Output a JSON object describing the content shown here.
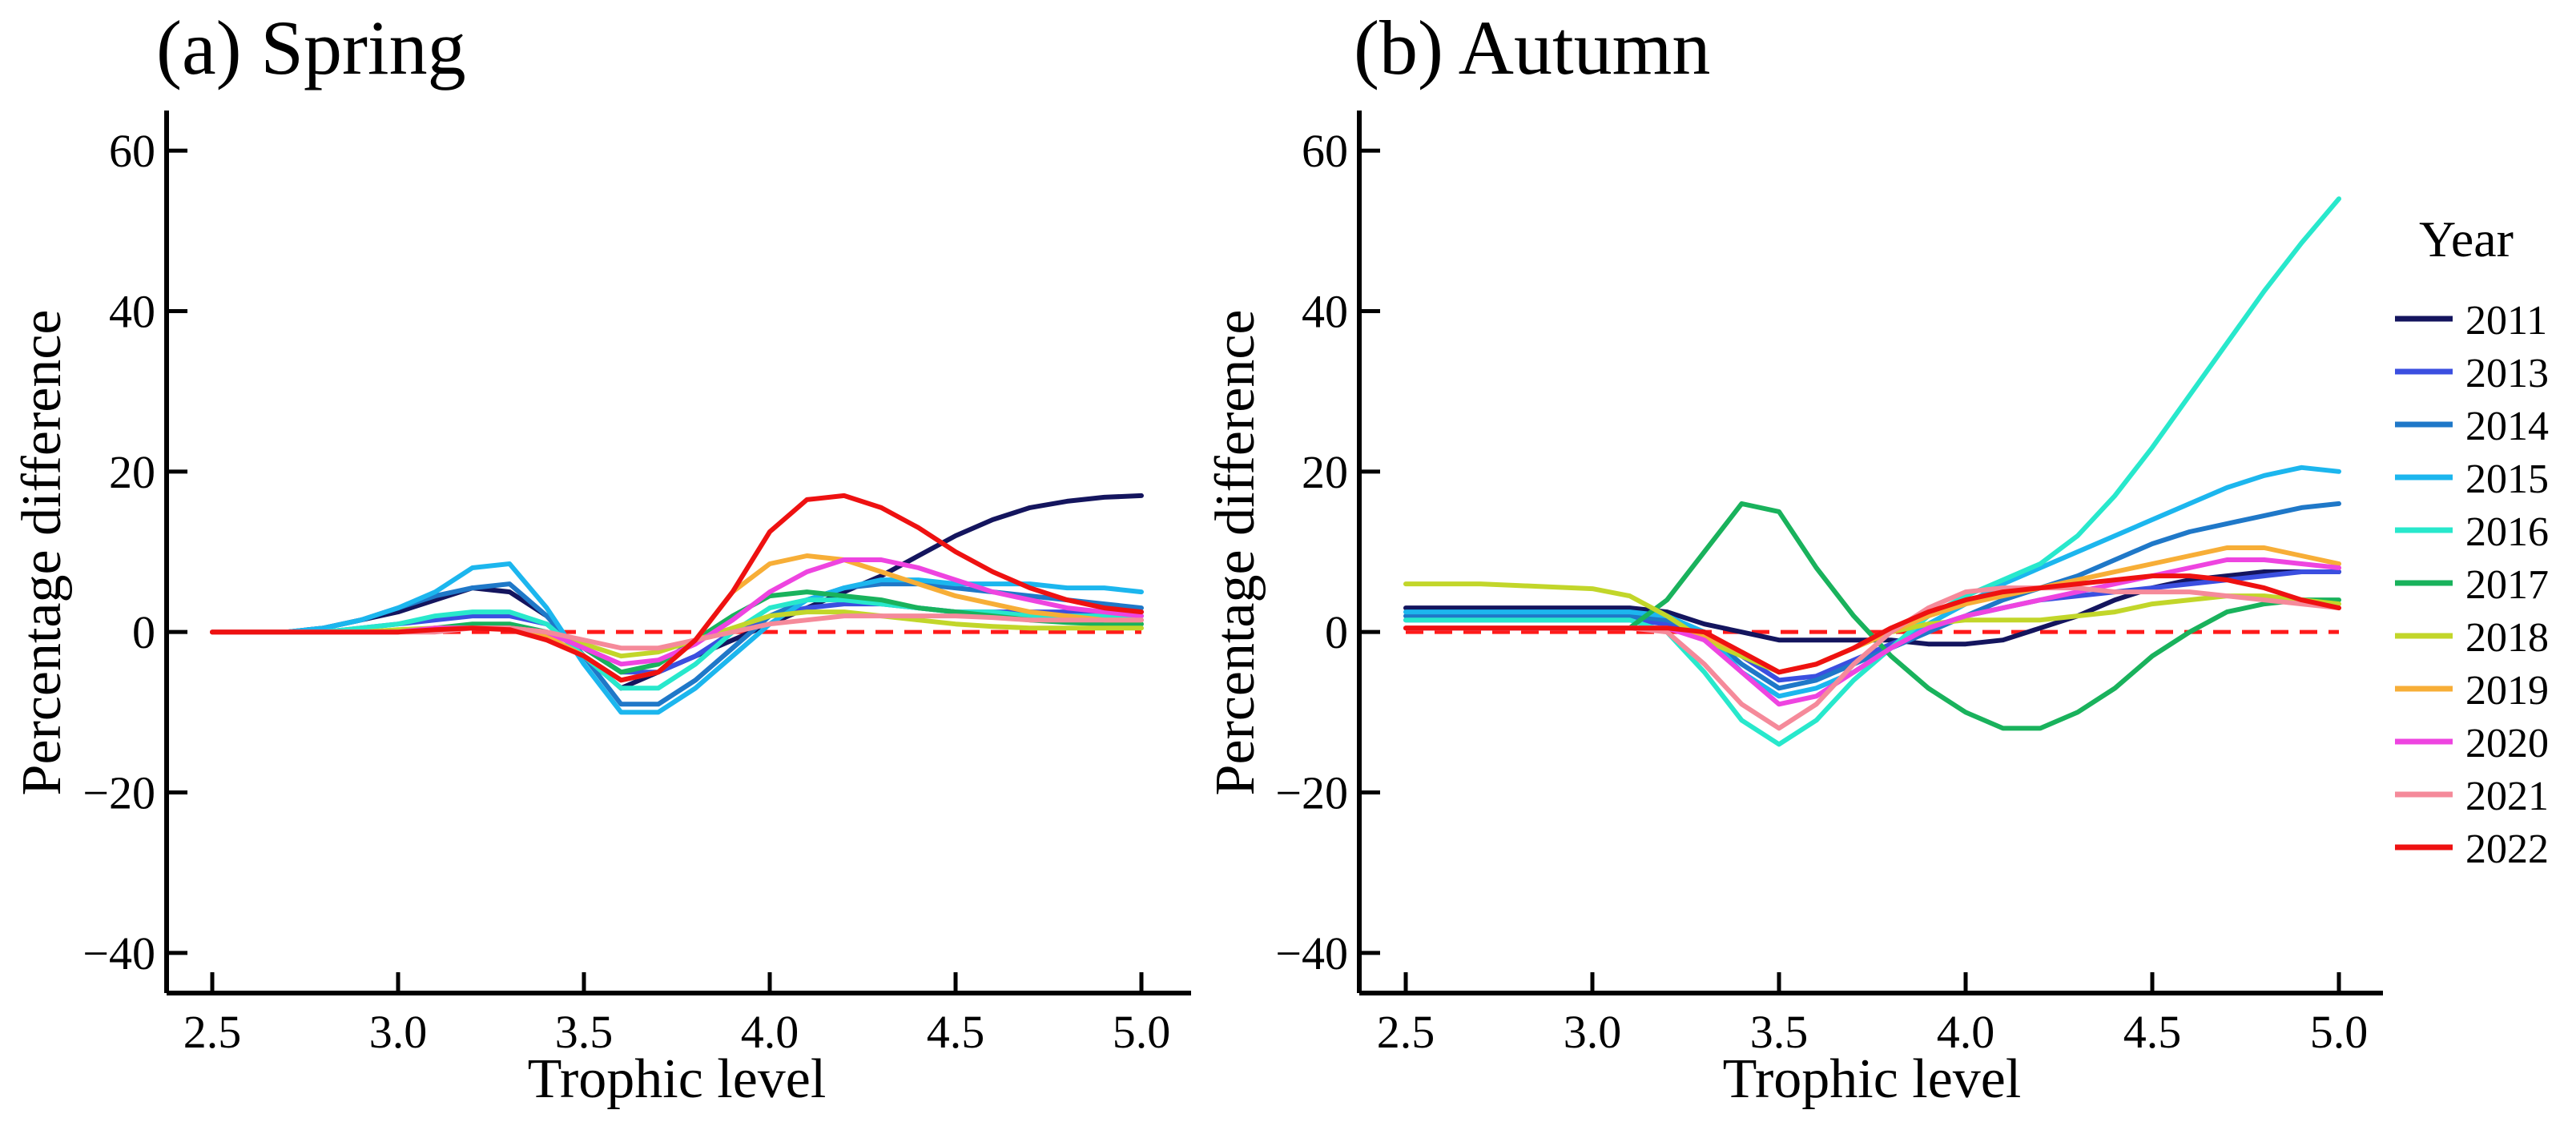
{
  "figure": {
    "legend_title": "Year",
    "reference_line_color": "#ff1a1a"
  },
  "legend": [
    {
      "year": "2011",
      "color": "#14155e"
    },
    {
      "year": "2013",
      "color": "#3b4fe0"
    },
    {
      "year": "2014",
      "color": "#1f78c8"
    },
    {
      "year": "2015",
      "color": "#1cb6ee"
    },
    {
      "year": "2016",
      "color": "#28e8cc"
    },
    {
      "year": "2017",
      "color": "#19b25c"
    },
    {
      "year": "2018",
      "color": "#c2d62a"
    },
    {
      "year": "2019",
      "color": "#f7ae37"
    },
    {
      "year": "2020",
      "color": "#ee44e0"
    },
    {
      "year": "2021",
      "color": "#f58a9a"
    },
    {
      "year": "2022",
      "color": "#ee1111"
    }
  ],
  "chart_data": [
    {
      "type": "line",
      "title": "(a) Spring",
      "xlabel": "Trophic level",
      "ylabel": "Percentage difference",
      "xlim": [
        2.5,
        5.0
      ],
      "ylim": [
        -45,
        65
      ],
      "xticks": [
        "2.5",
        "3.0",
        "3.5",
        "4.0",
        "4.5",
        "5.0"
      ],
      "yticks": [
        "60",
        "40",
        "20",
        "0",
        "−20",
        "−40"
      ],
      "reference_line": 0,
      "x": [
        2.5,
        2.6,
        2.7,
        2.8,
        2.9,
        3.0,
        3.1,
        3.2,
        3.3,
        3.4,
        3.5,
        3.6,
        3.7,
        3.8,
        3.9,
        4.0,
        4.1,
        4.2,
        4.3,
        4.4,
        4.5,
        4.6,
        4.7,
        4.8,
        4.9,
        5.0
      ],
      "series": [
        {
          "name": "2011",
          "values": [
            0,
            0,
            0,
            0.5,
            1.5,
            2.5,
            4,
            5.5,
            5,
            2,
            -3,
            -7,
            -5,
            -3,
            -1,
            1,
            3,
            5,
            7,
            9.5,
            12,
            14,
            15.5,
            16.3,
            16.8,
            17
          ]
        },
        {
          "name": "2013",
          "values": [
            0,
            0,
            0,
            0,
            0.5,
            1,
            1.5,
            2,
            2,
            1,
            -2,
            -5,
            -5,
            -3,
            0,
            2,
            3,
            3.5,
            3.5,
            3,
            2.5,
            2.5,
            2.5,
            2.5,
            2.5,
            2.5
          ]
        },
        {
          "name": "2014",
          "values": [
            0,
            0,
            0,
            0.5,
            1.5,
            3,
            4.5,
            5.5,
            6,
            2,
            -3,
            -9,
            -9,
            -6,
            -2,
            2,
            4,
            5.5,
            6,
            6,
            5.5,
            5,
            4.5,
            4,
            3.5,
            3
          ]
        },
        {
          "name": "2015",
          "values": [
            0,
            0,
            0,
            0.5,
            1.5,
            3,
            5,
            8,
            8.5,
            3,
            -4,
            -10,
            -10,
            -7,
            -3,
            1,
            4,
            5.5,
            6.5,
            6.5,
            6,
            6,
            6,
            5.5,
            5.5,
            5
          ]
        },
        {
          "name": "2016",
          "values": [
            0,
            0,
            0,
            0,
            0.5,
            1,
            2,
            2.5,
            2.5,
            1,
            -3,
            -7,
            -7,
            -4,
            0,
            3,
            4,
            4,
            3.5,
            3,
            2.5,
            2.5,
            2,
            2,
            2,
            2
          ]
        },
        {
          "name": "2017",
          "values": [
            0,
            0,
            0,
            0,
            0,
            0,
            0.5,
            1,
            1,
            0,
            -2,
            -5,
            -4,
            -1,
            2,
            4.5,
            5,
            4.5,
            4,
            3,
            2.5,
            2,
            1.5,
            1.2,
            1,
            1
          ]
        },
        {
          "name": "2018",
          "values": [
            0,
            0,
            0,
            0,
            0,
            0.3,
            0.5,
            0.5,
            0.5,
            0,
            -1.5,
            -3,
            -2.5,
            -1,
            0.5,
            2,
            2.5,
            2.5,
            2,
            1.5,
            1,
            0.7,
            0.5,
            0.5,
            0.5,
            0.5
          ]
        },
        {
          "name": "2019",
          "values": [
            0,
            0,
            0,
            0,
            0,
            0,
            0.5,
            0.5,
            0.5,
            -0.5,
            -3,
            -6,
            -5,
            -1,
            5,
            8.5,
            9.5,
            9,
            7.5,
            6,
            4.5,
            3.5,
            2.5,
            2,
            1.5,
            1.5
          ]
        },
        {
          "name": "2020",
          "values": [
            0,
            0,
            0,
            0,
            0,
            0,
            0.5,
            0.5,
            0.5,
            0,
            -2,
            -4,
            -3.5,
            -1.5,
            1.5,
            5,
            7.5,
            9,
            9,
            8,
            6.5,
            5,
            4,
            3,
            2.5,
            2
          ]
        },
        {
          "name": "2021",
          "values": [
            0,
            0,
            0,
            0,
            0,
            0,
            0,
            0.5,
            0.5,
            0,
            -1,
            -2,
            -2,
            -1,
            0,
            1,
            1.5,
            2,
            2,
            2,
            2,
            1.8,
            1.5,
            1.5,
            1.5,
            1.5
          ]
        },
        {
          "name": "2022",
          "values": [
            0,
            0,
            0,
            0,
            0,
            0,
            0.3,
            0.5,
            0.3,
            -1,
            -3,
            -6,
            -5,
            -1,
            5,
            12.5,
            16.5,
            17,
            15.5,
            13,
            10,
            7.5,
            5.5,
            4,
            3,
            2.5
          ]
        }
      ]
    },
    {
      "type": "line",
      "title": "(b) Autumn",
      "xlabel": "Trophic level",
      "ylabel": "Percentage difference",
      "xlim": [
        2.5,
        5.0
      ],
      "ylim": [
        -45,
        65
      ],
      "xticks": [
        "2.5",
        "3.0",
        "3.5",
        "4.0",
        "4.5",
        "5.0"
      ],
      "yticks": [
        "60",
        "40",
        "20",
        "0",
        "−20",
        "−40"
      ],
      "reference_line": 0,
      "x": [
        2.5,
        2.6,
        2.7,
        2.8,
        2.9,
        3.0,
        3.1,
        3.2,
        3.3,
        3.4,
        3.5,
        3.6,
        3.7,
        3.8,
        3.9,
        4.0,
        4.1,
        4.2,
        4.3,
        4.4,
        4.5,
        4.6,
        4.7,
        4.8,
        4.9,
        5.0
      ],
      "series": [
        {
          "name": "2011",
          "values": [
            3,
            3,
            3,
            3,
            3,
            3,
            3,
            2.5,
            1,
            0,
            -1,
            -1,
            -1,
            -1,
            -1.5,
            -1.5,
            -1,
            0.5,
            2,
            4,
            5.5,
            6.5,
            7,
            7.5,
            7.5,
            7.5
          ]
        },
        {
          "name": "2013",
          "values": [
            1.5,
            1.5,
            1.5,
            1.5,
            1.5,
            1.5,
            1.5,
            1,
            0,
            -3,
            -6,
            -5.5,
            -3.5,
            -1.5,
            0.5,
            2,
            3,
            4,
            4.5,
            5,
            5.5,
            6,
            6.5,
            7,
            7.5,
            7.5
          ]
        },
        {
          "name": "2014",
          "values": [
            2,
            2,
            2,
            2,
            2,
            2,
            2,
            1.5,
            0,
            -4,
            -7,
            -6,
            -4,
            -2,
            0,
            2,
            4,
            5.5,
            7,
            9,
            11,
            12.5,
            13.5,
            14.5,
            15.5,
            16
          ]
        },
        {
          "name": "2015",
          "values": [
            2.5,
            2.5,
            2.5,
            2.5,
            2.5,
            2.5,
            2.5,
            2,
            0,
            -5,
            -8,
            -7,
            -5,
            -2,
            1,
            3.5,
            6,
            8,
            10,
            12,
            14,
            16,
            18,
            19.5,
            20.5,
            20
          ]
        },
        {
          "name": "2016",
          "values": [
            1.5,
            1.5,
            1.5,
            1.5,
            1.5,
            1.5,
            1.5,
            0,
            -5,
            -11,
            -14,
            -11,
            -6,
            -2,
            2,
            4.5,
            6.5,
            8.5,
            12,
            17,
            23,
            29.5,
            36,
            42.5,
            48.5,
            54
          ]
        },
        {
          "name": "2017",
          "values": [
            0.5,
            0.5,
            0.5,
            0.5,
            0.5,
            0.5,
            0.5,
            4,
            10,
            16,
            15,
            8,
            2,
            -3,
            -7,
            -10,
            -12,
            -12,
            -10,
            -7,
            -3,
            0,
            2.5,
            3.5,
            4,
            4
          ]
        },
        {
          "name": "2018",
          "values": [
            6,
            6,
            6,
            5.8,
            5.6,
            5.4,
            4.5,
            2,
            -1,
            -3,
            -5,
            -4,
            -2,
            0,
            1,
            1.5,
            1.5,
            1.5,
            2,
            2.5,
            3.5,
            4,
            4.5,
            4.5,
            4,
            3.5
          ]
        },
        {
          "name": "2019",
          "values": [
            0.5,
            0.5,
            0.5,
            0.5,
            0.5,
            0.5,
            0.5,
            0.5,
            -0.5,
            -2.5,
            -5,
            -4,
            -2,
            0,
            2,
            3.5,
            4.5,
            5.5,
            6.5,
            7.5,
            8.5,
            9.5,
            10.5,
            10.5,
            9.5,
            8.5
          ]
        },
        {
          "name": "2020",
          "values": [
            0.5,
            0.5,
            0.5,
            0.5,
            0.5,
            0.5,
            0.5,
            0.5,
            -1,
            -5,
            -9,
            -8,
            -5,
            -2,
            0.5,
            2,
            3,
            4,
            5,
            6,
            7,
            8,
            9,
            9,
            8.5,
            8
          ]
        },
        {
          "name": "2021",
          "values": [
            0.5,
            0.5,
            0.5,
            0.5,
            0.5,
            0.5,
            0.5,
            0,
            -4,
            -9,
            -12,
            -9,
            -4,
            0,
            3,
            5,
            5.5,
            5.5,
            5.5,
            5,
            5,
            5,
            4.5,
            4,
            3.5,
            3
          ]
        },
        {
          "name": "2022",
          "values": [
            0.5,
            0.5,
            0.5,
            0.5,
            0.5,
            0.5,
            0.5,
            0.5,
            0,
            -2.5,
            -5,
            -4,
            -2,
            0.5,
            2.5,
            4,
            5,
            5.5,
            6,
            6.5,
            7,
            7,
            6.5,
            5.5,
            4,
            3
          ]
        }
      ]
    }
  ]
}
